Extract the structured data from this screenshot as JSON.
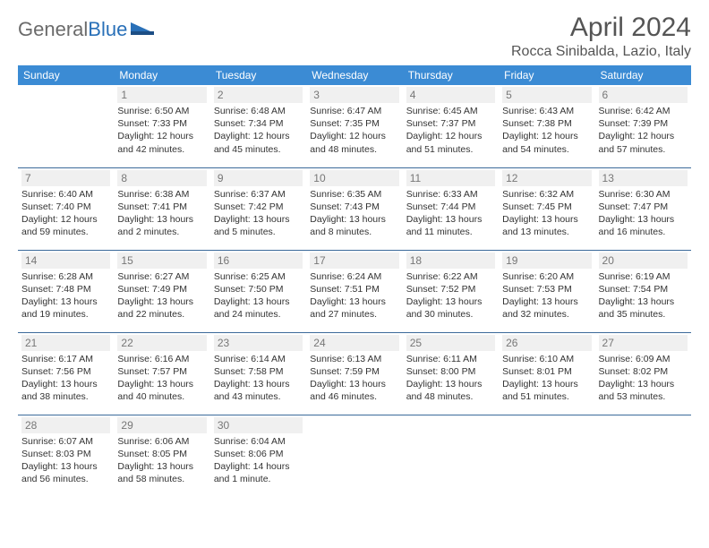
{
  "brand": {
    "left": "General",
    "right": "Blue"
  },
  "title": "April 2024",
  "location": "Rocca Sinibalda, Lazio, Italy",
  "colors": {
    "header_bg": "#3b8bd4",
    "rule": "#3b6a9a",
    "daynum_bg": "#f0f0f0",
    "daynum_fg": "#777777",
    "brand_gray": "#6b6b6b",
    "brand_blue": "#2970b8"
  },
  "weekdays": [
    "Sunday",
    "Monday",
    "Tuesday",
    "Wednesday",
    "Thursday",
    "Friday",
    "Saturday"
  ],
  "weeks": [
    [
      null,
      {
        "n": "1",
        "sr": "6:50 AM",
        "ss": "7:33 PM",
        "dl": "12 hours and 42 minutes."
      },
      {
        "n": "2",
        "sr": "6:48 AM",
        "ss": "7:34 PM",
        "dl": "12 hours and 45 minutes."
      },
      {
        "n": "3",
        "sr": "6:47 AM",
        "ss": "7:35 PM",
        "dl": "12 hours and 48 minutes."
      },
      {
        "n": "4",
        "sr": "6:45 AM",
        "ss": "7:37 PM",
        "dl": "12 hours and 51 minutes."
      },
      {
        "n": "5",
        "sr": "6:43 AM",
        "ss": "7:38 PM",
        "dl": "12 hours and 54 minutes."
      },
      {
        "n": "6",
        "sr": "6:42 AM",
        "ss": "7:39 PM",
        "dl": "12 hours and 57 minutes."
      }
    ],
    [
      {
        "n": "7",
        "sr": "6:40 AM",
        "ss": "7:40 PM",
        "dl": "12 hours and 59 minutes."
      },
      {
        "n": "8",
        "sr": "6:38 AM",
        "ss": "7:41 PM",
        "dl": "13 hours and 2 minutes."
      },
      {
        "n": "9",
        "sr": "6:37 AM",
        "ss": "7:42 PM",
        "dl": "13 hours and 5 minutes."
      },
      {
        "n": "10",
        "sr": "6:35 AM",
        "ss": "7:43 PM",
        "dl": "13 hours and 8 minutes."
      },
      {
        "n": "11",
        "sr": "6:33 AM",
        "ss": "7:44 PM",
        "dl": "13 hours and 11 minutes."
      },
      {
        "n": "12",
        "sr": "6:32 AM",
        "ss": "7:45 PM",
        "dl": "13 hours and 13 minutes."
      },
      {
        "n": "13",
        "sr": "6:30 AM",
        "ss": "7:47 PM",
        "dl": "13 hours and 16 minutes."
      }
    ],
    [
      {
        "n": "14",
        "sr": "6:28 AM",
        "ss": "7:48 PM",
        "dl": "13 hours and 19 minutes."
      },
      {
        "n": "15",
        "sr": "6:27 AM",
        "ss": "7:49 PM",
        "dl": "13 hours and 22 minutes."
      },
      {
        "n": "16",
        "sr": "6:25 AM",
        "ss": "7:50 PM",
        "dl": "13 hours and 24 minutes."
      },
      {
        "n": "17",
        "sr": "6:24 AM",
        "ss": "7:51 PM",
        "dl": "13 hours and 27 minutes."
      },
      {
        "n": "18",
        "sr": "6:22 AM",
        "ss": "7:52 PM",
        "dl": "13 hours and 30 minutes."
      },
      {
        "n": "19",
        "sr": "6:20 AM",
        "ss": "7:53 PM",
        "dl": "13 hours and 32 minutes."
      },
      {
        "n": "20",
        "sr": "6:19 AM",
        "ss": "7:54 PM",
        "dl": "13 hours and 35 minutes."
      }
    ],
    [
      {
        "n": "21",
        "sr": "6:17 AM",
        "ss": "7:56 PM",
        "dl": "13 hours and 38 minutes."
      },
      {
        "n": "22",
        "sr": "6:16 AM",
        "ss": "7:57 PM",
        "dl": "13 hours and 40 minutes."
      },
      {
        "n": "23",
        "sr": "6:14 AM",
        "ss": "7:58 PM",
        "dl": "13 hours and 43 minutes."
      },
      {
        "n": "24",
        "sr": "6:13 AM",
        "ss": "7:59 PM",
        "dl": "13 hours and 46 minutes."
      },
      {
        "n": "25",
        "sr": "6:11 AM",
        "ss": "8:00 PM",
        "dl": "13 hours and 48 minutes."
      },
      {
        "n": "26",
        "sr": "6:10 AM",
        "ss": "8:01 PM",
        "dl": "13 hours and 51 minutes."
      },
      {
        "n": "27",
        "sr": "6:09 AM",
        "ss": "8:02 PM",
        "dl": "13 hours and 53 minutes."
      }
    ],
    [
      {
        "n": "28",
        "sr": "6:07 AM",
        "ss": "8:03 PM",
        "dl": "13 hours and 56 minutes."
      },
      {
        "n": "29",
        "sr": "6:06 AM",
        "ss": "8:05 PM",
        "dl": "13 hours and 58 minutes."
      },
      {
        "n": "30",
        "sr": "6:04 AM",
        "ss": "8:06 PM",
        "dl": "14 hours and 1 minute."
      },
      null,
      null,
      null,
      null
    ]
  ],
  "labels": {
    "sunrise": "Sunrise:",
    "sunset": "Sunset:",
    "daylight": "Daylight:"
  }
}
